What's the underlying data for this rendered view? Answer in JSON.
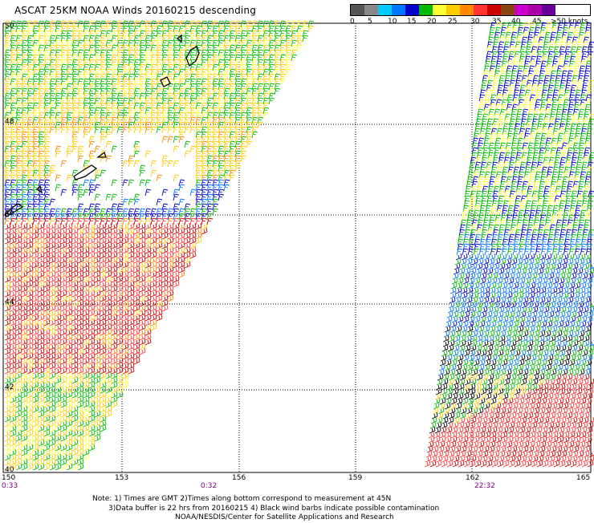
{
  "title": "ASCAT 25KM NOAA Winds 20160215 descending",
  "legend": {
    "colors": [
      "#555555",
      "#888888",
      "#00ccff",
      "#0077ff",
      "#0000cc",
      "#00bb00",
      "#ffff33",
      "#ffcc00",
      "#ff8800",
      "#ff3333",
      "#cc0000",
      "#8b4513",
      "#cc00cc",
      "#aa00aa",
      "#660099"
    ],
    "labels": [
      "0",
      "5",
      "10",
      "15",
      "20",
      "25",
      "30",
      "35",
      "40",
      "45",
      ">50 knots"
    ]
  },
  "axes": {
    "lat_labels": [
      "50",
      "48",
      "46",
      "44",
      "42",
      "40"
    ],
    "lon_labels": [
      "150",
      "153",
      "156",
      "159",
      "162",
      "165"
    ]
  },
  "pass_times": [
    "0:33",
    "0:32",
    "22:32"
  ],
  "swaths": [
    {
      "name": "west-swath",
      "colors": [
        "#ffcc00",
        "#ffff33",
        "#ff8800",
        "#cc0000",
        "#ff3333",
        "#00bb00",
        "#0000cc"
      ]
    },
    {
      "name": "east-swath",
      "colors": [
        "#00bb00",
        "#0000cc",
        "#0077ff",
        "#ffff33",
        "#ff8800",
        "#cc0000",
        "#000000"
      ]
    }
  ],
  "notes": {
    "line1": "Note: 1) Times are GMT 2)Times along bottom correspond to measurement at 45N",
    "line2": "3)Data buffer is 22 hrs from 20160215 4) Black wind barbs indicate possible contamination",
    "line3": "NOAA/NESDIS/Center for Satellite Applications and Research"
  }
}
